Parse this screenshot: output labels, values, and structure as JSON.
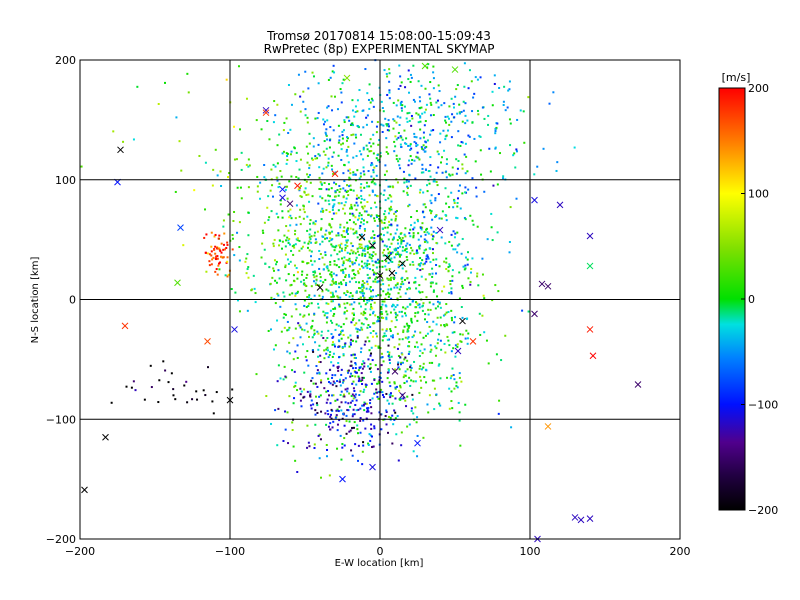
{
  "chart_data": {
    "type": "scatter",
    "title": "Tromsø 20170814 15:08:00-15:09:43",
    "subtitle": "RwPretec (8p) EXPERIMENTAL SKYMAP",
    "xlabel": "E-W location [km]",
    "ylabel": "N-S location [km]",
    "xlim": [
      -200,
      200
    ],
    "ylim": [
      -200,
      200
    ],
    "x_ticks": [
      -200,
      -100,
      0,
      100,
      200
    ],
    "y_ticks": [
      -200,
      -100,
      0,
      100,
      200
    ],
    "grid": true,
    "colorbar": {
      "label": "[m/s]",
      "range": [
        -200,
        200
      ],
      "ticks": [
        200,
        100,
        0,
        -100,
        -200
      ],
      "colormap": "rainbow: black(-200) → purple → blue(-100) → cyan → green(0) → yellow(100) → orange → red(200)"
    },
    "markers": [
      "x (large crosses)",
      "dot (small points)"
    ],
    "point_clusters": [
      {
        "x": 0,
        "y": 10,
        "spread_x": 35,
        "spread_y": 60,
        "velocity": 0,
        "n": 1600,
        "marker": "dot"
      },
      {
        "x": 20,
        "y": 140,
        "spread_x": 40,
        "spread_y": 30,
        "velocity": -30,
        "n": 500,
        "marker": "dot"
      },
      {
        "x": -20,
        "y": -80,
        "spread_x": 20,
        "spread_y": 25,
        "velocity": -110,
        "n": 300,
        "marker": "dot"
      },
      {
        "x": -50,
        "y": 60,
        "spread_x": 30,
        "spread_y": 40,
        "velocity": 20,
        "n": 300,
        "marker": "dot"
      },
      {
        "x": -108,
        "y": 40,
        "spread_x": 5,
        "spread_y": 10,
        "velocity": 180,
        "n": 60,
        "marker": "dot"
      },
      {
        "x": -140,
        "y": -75,
        "spread_x": 20,
        "spread_y": 10,
        "velocity": -200,
        "n": 30,
        "marker": "dot"
      },
      {
        "x": -100,
        "y": 120,
        "spread_x": 50,
        "spread_y": 50,
        "velocity": 40,
        "n": 60,
        "marker": "dot"
      },
      {
        "x": 30,
        "y": 40,
        "spread_x": 15,
        "spread_y": 15,
        "velocity": -60,
        "n": 50,
        "marker": "dot"
      }
    ],
    "x_markers": [
      {
        "x": -173,
        "y": 125,
        "v": -200
      },
      {
        "x": -175,
        "y": 98,
        "v": -100
      },
      {
        "x": -170,
        "y": -22,
        "v": 180
      },
      {
        "x": -183,
        "y": -115,
        "v": -200
      },
      {
        "x": -197,
        "y": -159,
        "v": -200
      },
      {
        "x": -100,
        "y": -84,
        "v": -200
      },
      {
        "x": -97,
        "y": -25,
        "v": -110
      },
      {
        "x": -115,
        "y": -35,
        "v": 170
      },
      {
        "x": -135,
        "y": 14,
        "v": 30
      },
      {
        "x": -133,
        "y": 60,
        "v": -80
      },
      {
        "x": -76,
        "y": 158,
        "v": -120
      },
      {
        "x": -76,
        "y": 156,
        "v": 180
      },
      {
        "x": -65,
        "y": 85,
        "v": -110
      },
      {
        "x": -22,
        "y": 185,
        "v": 50
      },
      {
        "x": 50,
        "y": 192,
        "v": 30
      },
      {
        "x": -55,
        "y": 95,
        "v": 190
      },
      {
        "x": -60,
        "y": 80,
        "v": -150
      },
      {
        "x": -30,
        "y": 105,
        "v": 190
      },
      {
        "x": -12,
        "y": 52,
        "v": -200
      },
      {
        "x": -5,
        "y": 45,
        "v": -190
      },
      {
        "x": 5,
        "y": 35,
        "v": -200
      },
      {
        "x": 0,
        "y": 20,
        "v": -200
      },
      {
        "x": 15,
        "y": 30,
        "v": -200
      },
      {
        "x": 8,
        "y": 22,
        "v": -200
      },
      {
        "x": 40,
        "y": 58,
        "v": -120
      },
      {
        "x": -40,
        "y": 10,
        "v": -200
      },
      {
        "x": 55,
        "y": -18,
        "v": -200
      },
      {
        "x": 62,
        "y": -35,
        "v": 180
      },
      {
        "x": 52,
        "y": -43,
        "v": -120
      },
      {
        "x": 103,
        "y": 83,
        "v": -110
      },
      {
        "x": 120,
        "y": 79,
        "v": -120
      },
      {
        "x": 140,
        "y": 53,
        "v": -120
      },
      {
        "x": 140,
        "y": 28,
        "v": -10
      },
      {
        "x": 108,
        "y": 13,
        "v": -150
      },
      {
        "x": 112,
        "y": 11,
        "v": -150
      },
      {
        "x": 103,
        "y": -12,
        "v": -150
      },
      {
        "x": 140,
        "y": -25,
        "v": 190
      },
      {
        "x": 142,
        "y": -47,
        "v": 200
      },
      {
        "x": 172,
        "y": -71,
        "v": -150
      },
      {
        "x": 112,
        "y": -106,
        "v": 140
      },
      {
        "x": 130,
        "y": -182,
        "v": -120
      },
      {
        "x": 134,
        "y": -184,
        "v": -120
      },
      {
        "x": 140,
        "y": -183,
        "v": -120
      },
      {
        "x": 105,
        "y": -200,
        "v": -120
      },
      {
        "x": -25,
        "y": -150,
        "v": -100
      },
      {
        "x": -5,
        "y": -140,
        "v": -110
      },
      {
        "x": 25,
        "y": -120,
        "v": -100
      },
      {
        "x": 15,
        "y": -80,
        "v": -150
      },
      {
        "x": 10,
        "y": -60,
        "v": -150
      },
      {
        "x": 30,
        "y": 195,
        "v": 30
      },
      {
        "x": -65,
        "y": 92,
        "v": -100
      }
    ]
  }
}
